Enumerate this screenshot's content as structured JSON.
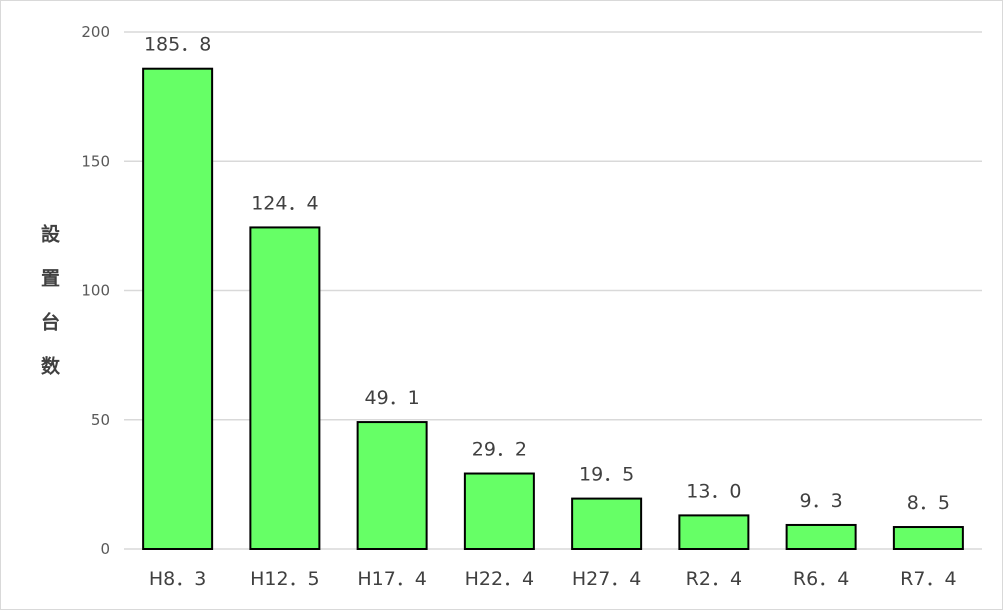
{
  "chart_data": {
    "type": "bar",
    "title": "",
    "xlabel": "",
    "ylabel": "設置台数",
    "categories": [
      "H8.3",
      "H12.5",
      "H17.4",
      "H22.4",
      "H27.4",
      "R2.4",
      "R6.4",
      "R7.4"
    ],
    "x_tick_labels": [
      "H8．3",
      "H12．5",
      "H17．4",
      "H22．4",
      "H27．4",
      "R2．4",
      "R6．4",
      "R7．4"
    ],
    "values": [
      185.8,
      124.4,
      49.1,
      29.2,
      19.5,
      13.0,
      9.3,
      8.5
    ],
    "data_labels": [
      "185．8",
      "124．4",
      "49．1",
      "29．2",
      "19．5",
      "13．0",
      "9．3",
      "8．5"
    ],
    "ylim": [
      0,
      200
    ],
    "yticks": [
      0,
      50,
      100,
      150,
      200
    ],
    "grid": true,
    "legend": "none",
    "colors": {
      "bar": "#66ff66",
      "bar_edge": "#000000",
      "grid": "#d9d9d9"
    }
  }
}
